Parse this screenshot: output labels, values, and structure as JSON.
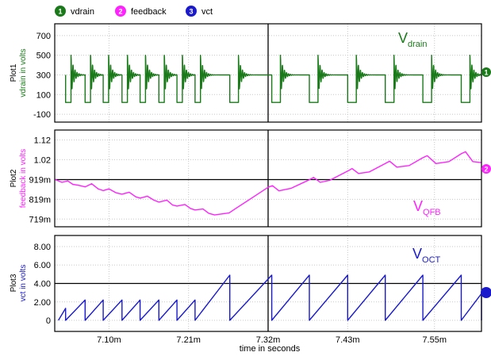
{
  "chart_data": {
    "type": "line",
    "legend": [
      {
        "marker": "1",
        "name": "vdrain",
        "color": "#1a7a1a"
      },
      {
        "marker": "2",
        "name": "feedback",
        "color": "#ff22ff"
      },
      {
        "marker": "3",
        "name": "vct",
        "color": "#1a1acc"
      }
    ],
    "x_axis": {
      "label": "time in seconds",
      "range": [
        7.025,
        7.615
      ],
      "ticks": [
        7.1,
        7.21,
        7.32,
        7.43,
        7.55
      ],
      "tick_labels": [
        "7.10m",
        "7.21m",
        "7.32m",
        "7.43m",
        "7.55m"
      ],
      "cursor": 7.32
    },
    "plots": [
      {
        "id": "plot1",
        "plot_label": "Plot1",
        "ylabel": "vdrain in volts",
        "color": "#1a7a1a",
        "ylim": [
          -180,
          820
        ],
        "y_ticks": [
          -100,
          100,
          300,
          500,
          700
        ],
        "y_tick_labels": [
          "-100",
          "100",
          "300",
          "500",
          "700"
        ],
        "annotation": "V",
        "annotation_sub": "drain",
        "marker": "1",
        "pulses": [
          {
            "t": 7.04,
            "dur": 0.0075
          },
          {
            "t": 7.067,
            "dur": 0.0075
          },
          {
            "t": 7.092,
            "dur": 0.0075
          },
          {
            "t": 7.118,
            "dur": 0.0075
          },
          {
            "t": 7.143,
            "dur": 0.0075
          },
          {
            "t": 7.169,
            "dur": 0.0075
          },
          {
            "t": 7.194,
            "dur": 0.0075
          },
          {
            "t": 7.219,
            "dur": 0.0075
          },
          {
            "t": 7.267,
            "dur": 0.012
          },
          {
            "t": 7.325,
            "dur": 0.012
          },
          {
            "t": 7.377,
            "dur": 0.012
          },
          {
            "t": 7.43,
            "dur": 0.012
          },
          {
            "t": 7.482,
            "dur": 0.012
          },
          {
            "t": 7.534,
            "dur": 0.012
          },
          {
            "t": 7.587,
            "dur": 0.012
          }
        ],
        "levels": {
          "base": 300,
          "low": 20,
          "high": 500,
          "ring_amp": 150
        }
      },
      {
        "id": "plot2",
        "plot_label": "Plot2",
        "ylabel": "feedback in volts",
        "color": "#ff22ff",
        "ylim": [
          0.68,
          1.17
        ],
        "y_ticks": [
          0.719,
          0.819,
          0.919,
          1.02,
          1.12
        ],
        "y_tick_labels": [
          "719m",
          "819m",
          "919m",
          "1.02",
          "1.12"
        ],
        "hline": 0.919,
        "annotation": "V",
        "annotation_sub": "QFB",
        "marker": "2",
        "x": [
          7.025,
          7.035,
          7.043,
          7.05,
          7.058,
          7.067,
          7.076,
          7.085,
          7.092,
          7.1,
          7.11,
          7.118,
          7.128,
          7.137,
          7.143,
          7.153,
          7.162,
          7.169,
          7.18,
          7.188,
          7.194,
          7.205,
          7.213,
          7.219,
          7.23,
          7.238,
          7.246,
          7.266,
          7.275,
          7.3,
          7.32,
          7.326,
          7.335,
          7.352,
          7.377,
          7.383,
          7.392,
          7.405,
          7.43,
          7.436,
          7.445,
          7.46,
          7.482,
          7.488,
          7.498,
          7.515,
          7.534,
          7.54,
          7.552,
          7.57,
          7.587,
          7.593,
          7.603,
          7.615
        ],
        "y": [
          0.92,
          0.905,
          0.912,
          0.895,
          0.89,
          0.882,
          0.898,
          0.872,
          0.863,
          0.872,
          0.852,
          0.845,
          0.855,
          0.832,
          0.825,
          0.835,
          0.815,
          0.805,
          0.815,
          0.79,
          0.785,
          0.793,
          0.772,
          0.765,
          0.77,
          0.748,
          0.74,
          0.75,
          0.772,
          0.832,
          0.88,
          0.888,
          0.862,
          0.875,
          0.918,
          0.93,
          0.905,
          0.915,
          0.962,
          0.975,
          0.95,
          0.958,
          1.0,
          1.012,
          0.982,
          0.99,
          1.03,
          1.04,
          1.0,
          1.01,
          1.05,
          1.06,
          1.01,
          1.005
        ]
      },
      {
        "id": "plot3",
        "plot_label": "Plot3",
        "ylabel": "vct in volts",
        "color": "#1a1acc",
        "ylim": [
          -1.2,
          9.2
        ],
        "y_ticks": [
          0,
          2.0,
          4.0,
          6.0,
          8.0
        ],
        "y_tick_labels": [
          "0",
          "2.00",
          "4.00",
          "6.00",
          "8.00"
        ],
        "hline": 4.0,
        "annotation": "V",
        "annotation_sub": "OCT",
        "marker": "3",
        "ramps": [
          {
            "start": 7.03,
            "end": 7.04,
            "peak": 1.3
          },
          {
            "start": 7.04,
            "end": 7.067,
            "peak": 2.2
          },
          {
            "start": 7.067,
            "end": 7.092,
            "peak": 2.2
          },
          {
            "start": 7.092,
            "end": 7.118,
            "peak": 2.2
          },
          {
            "start": 7.118,
            "end": 7.143,
            "peak": 2.2
          },
          {
            "start": 7.143,
            "end": 7.169,
            "peak": 2.2
          },
          {
            "start": 7.169,
            "end": 7.194,
            "peak": 2.2
          },
          {
            "start": 7.194,
            "end": 7.219,
            "peak": 2.2
          },
          {
            "start": 7.219,
            "end": 7.267,
            "peak": 4.9
          },
          {
            "start": 7.267,
            "end": 7.325,
            "peak": 4.9
          },
          {
            "start": 7.325,
            "end": 7.377,
            "peak": 4.9
          },
          {
            "start": 7.377,
            "end": 7.43,
            "peak": 4.9
          },
          {
            "start": 7.43,
            "end": 7.482,
            "peak": 4.9
          },
          {
            "start": 7.482,
            "end": 7.534,
            "peak": 4.9
          },
          {
            "start": 7.534,
            "end": 7.587,
            "peak": 4.9
          },
          {
            "start": 7.587,
            "end": 7.615,
            "peak": 2.9
          }
        ]
      }
    ]
  }
}
